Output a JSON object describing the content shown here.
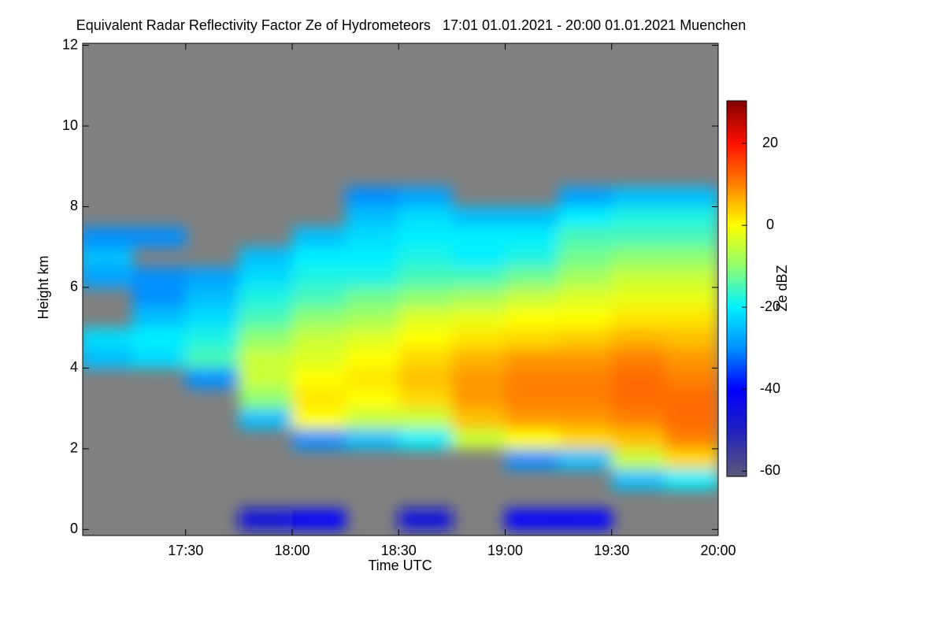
{
  "chart_data": {
    "type": "heatmap",
    "title": "Equivalent Radar Reflectivity Factor Ze of Hydrometeors   17:01 01.01.2021 - 20:00 01.01.2021 Muenchen",
    "xlabel": "Time UTC",
    "ylabel": "Height km",
    "colorbar_label": "Ze dBZ",
    "xlim": [
      17.0167,
      20.0
    ],
    "xticks": [
      {
        "value": 17.5,
        "label": "17:30"
      },
      {
        "value": 18,
        "label": "18:00"
      },
      {
        "value": 18.5,
        "label": "18:30"
      },
      {
        "value": 19,
        "label": "19:00"
      },
      {
        "value": 19.5,
        "label": "19:30"
      },
      {
        "value": 20,
        "label": "20:00"
      }
    ],
    "ylim": [
      -0.15,
      12.05
    ],
    "yticks": [
      0,
      2,
      4,
      6,
      8,
      10,
      12
    ],
    "zlim": [
      -61.3,
      30.4
    ],
    "zticks": [
      -60,
      -40,
      -20,
      0,
      20
    ],
    "background": "#808080",
    "colormap": [
      {
        "value": -61.3,
        "color": "#5a5a78"
      },
      {
        "value": -50,
        "color": "#2020c0"
      },
      {
        "value": -40,
        "color": "#0000ff"
      },
      {
        "value": -30,
        "color": "#0090ff"
      },
      {
        "value": -20,
        "color": "#00f0ff"
      },
      {
        "value": -10,
        "color": "#90ff70"
      },
      {
        "value": 0,
        "color": "#ffff00"
      },
      {
        "value": 10,
        "color": "#ff8000"
      },
      {
        "value": 20,
        "color": "#ff1000"
      },
      {
        "value": 30.4,
        "color": "#800000"
      }
    ],
    "x": [
      17.125,
      17.375,
      17.625,
      17.875,
      18.125,
      18.375,
      18.625,
      18.875,
      19.125,
      19.375,
      19.625,
      19.875
    ],
    "y": [
      0.25,
      0.75,
      1.25,
      1.75,
      2.25,
      2.75,
      3.25,
      3.75,
      4.25,
      4.75,
      5.25,
      5.75,
      6.25,
      6.75,
      7.25,
      7.75,
      8.25,
      8.75
    ],
    "z": [
      [
        null,
        null,
        null,
        null,
        null,
        null,
        null,
        null,
        -25,
        -22,
        null,
        null,
        -28,
        -25,
        -30,
        null,
        null,
        null
      ],
      [
        null,
        null,
        null,
        null,
        null,
        null,
        null,
        null,
        -22,
        -20,
        -25,
        -30,
        -30,
        null,
        -30,
        null,
        null,
        null
      ],
      [
        null,
        null,
        null,
        null,
        null,
        null,
        null,
        -30,
        -15,
        -18,
        -22,
        -25,
        -28,
        null,
        null,
        null,
        null,
        null
      ],
      [
        -45,
        null,
        null,
        null,
        null,
        -25,
        -10,
        -5,
        -5,
        -10,
        -15,
        -18,
        -22,
        -25,
        null,
        null,
        null,
        null
      ],
      [
        -40,
        null,
        null,
        null,
        -30,
        0,
        2,
        0,
        -3,
        -5,
        -10,
        -15,
        -18,
        -20,
        -25,
        null,
        null,
        null
      ],
      [
        null,
        null,
        null,
        null,
        -25,
        -5,
        0,
        2,
        0,
        -3,
        -8,
        -12,
        -18,
        -20,
        -22,
        -25,
        -30,
        null
      ],
      [
        -45,
        null,
        null,
        null,
        -20,
        -5,
        3,
        5,
        3,
        0,
        -3,
        -10,
        -15,
        -18,
        -20,
        -22,
        -28,
        null
      ],
      [
        null,
        null,
        null,
        null,
        -5,
        5,
        8,
        8,
        6,
        2,
        -2,
        -8,
        -15,
        -20,
        -20,
        -25,
        null,
        null
      ],
      [
        -40,
        null,
        null,
        -30,
        0,
        8,
        10,
        10,
        8,
        3,
        0,
        -5,
        -12,
        -18,
        -20,
        -25,
        null,
        null
      ],
      [
        -40,
        null,
        null,
        -25,
        3,
        8,
        10,
        10,
        8,
        4,
        0,
        -3,
        -8,
        -12,
        -15,
        -20,
        -28,
        null
      ],
      [
        null,
        null,
        -25,
        -5,
        5,
        10,
        12,
        12,
        10,
        6,
        2,
        -2,
        -5,
        -10,
        -15,
        -18,
        -25,
        null
      ],
      [
        null,
        null,
        -20,
        3,
        10,
        12,
        12,
        10,
        8,
        5,
        2,
        -2,
        -5,
        -10,
        -15,
        -18,
        -25,
        null
      ]
    ]
  }
}
